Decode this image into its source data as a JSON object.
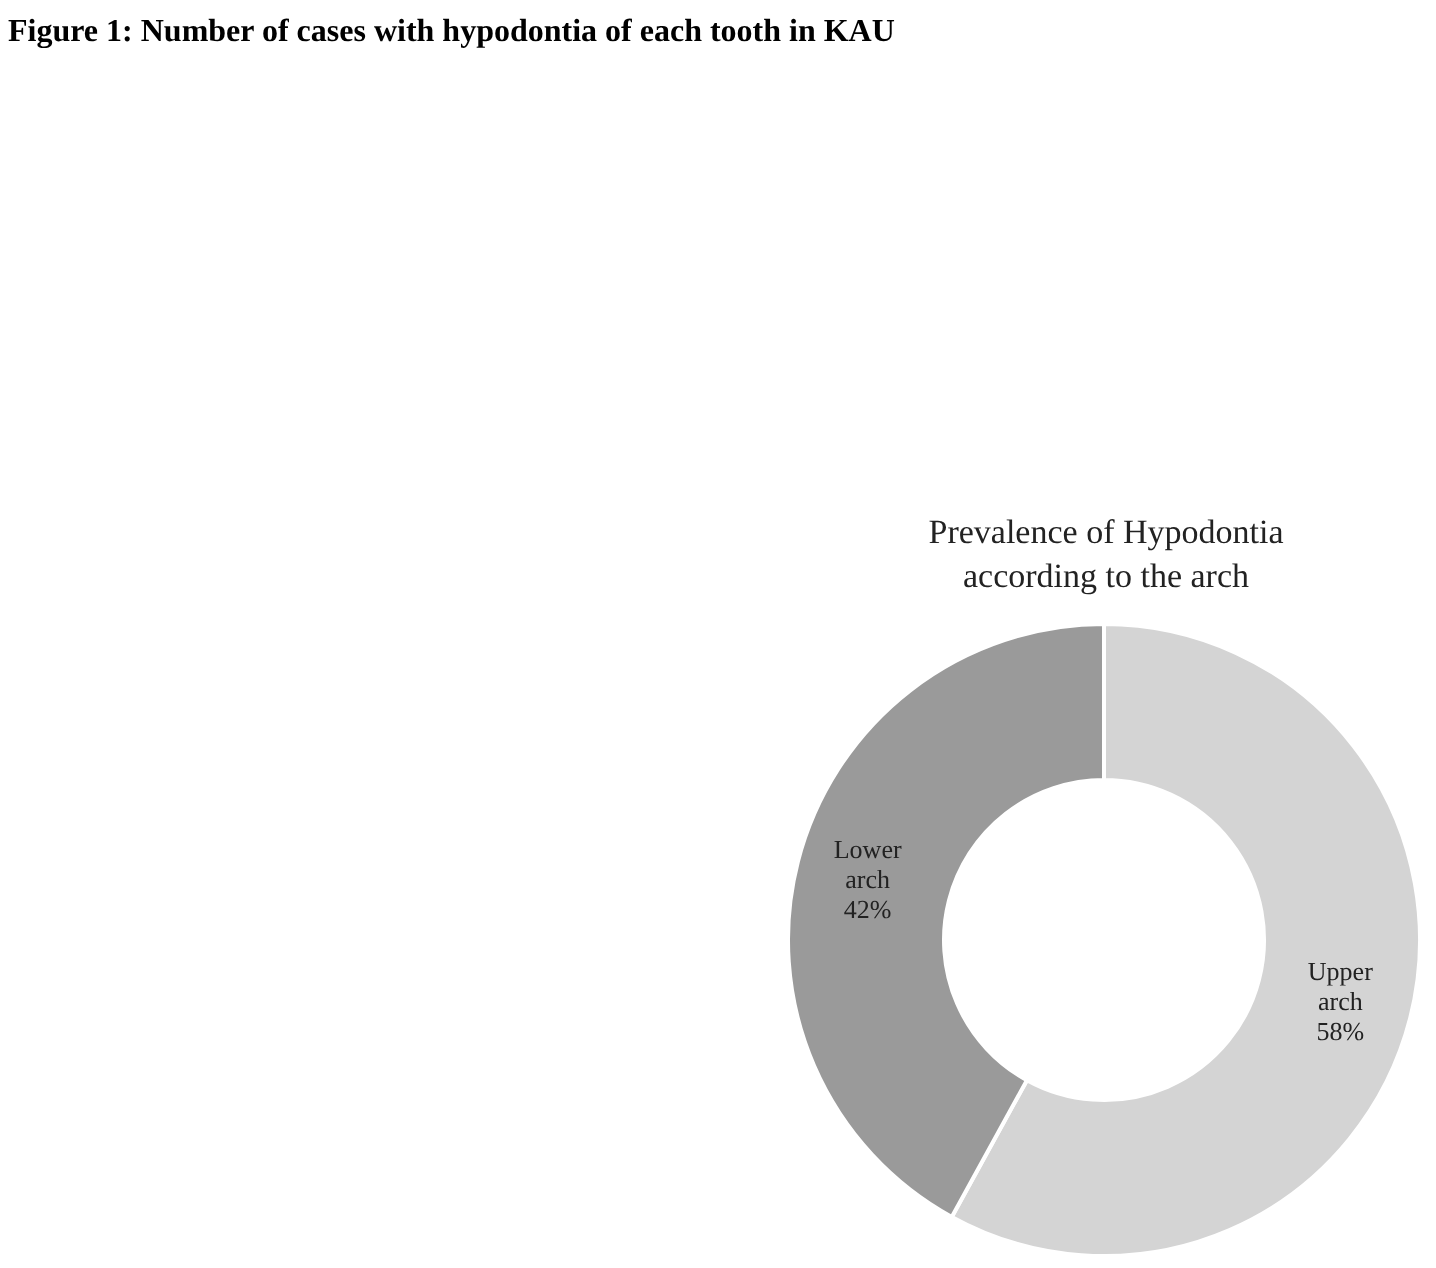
{
  "chart_data": {
    "type": "donut",
    "title": "Prevalence of Hypodontia\naccording to the arch",
    "annotations": [
      "Figure 1: Number of cases with hypodontia of each tooth in KAU"
    ],
    "categories": [
      "Upper arch",
      "Lower arch"
    ],
    "values": [
      58,
      42
    ],
    "colors": [
      "#d4d4d4",
      "#9a9a9a"
    ],
    "value_labels": [
      "58%",
      "42%"
    ],
    "legend": false
  }
}
